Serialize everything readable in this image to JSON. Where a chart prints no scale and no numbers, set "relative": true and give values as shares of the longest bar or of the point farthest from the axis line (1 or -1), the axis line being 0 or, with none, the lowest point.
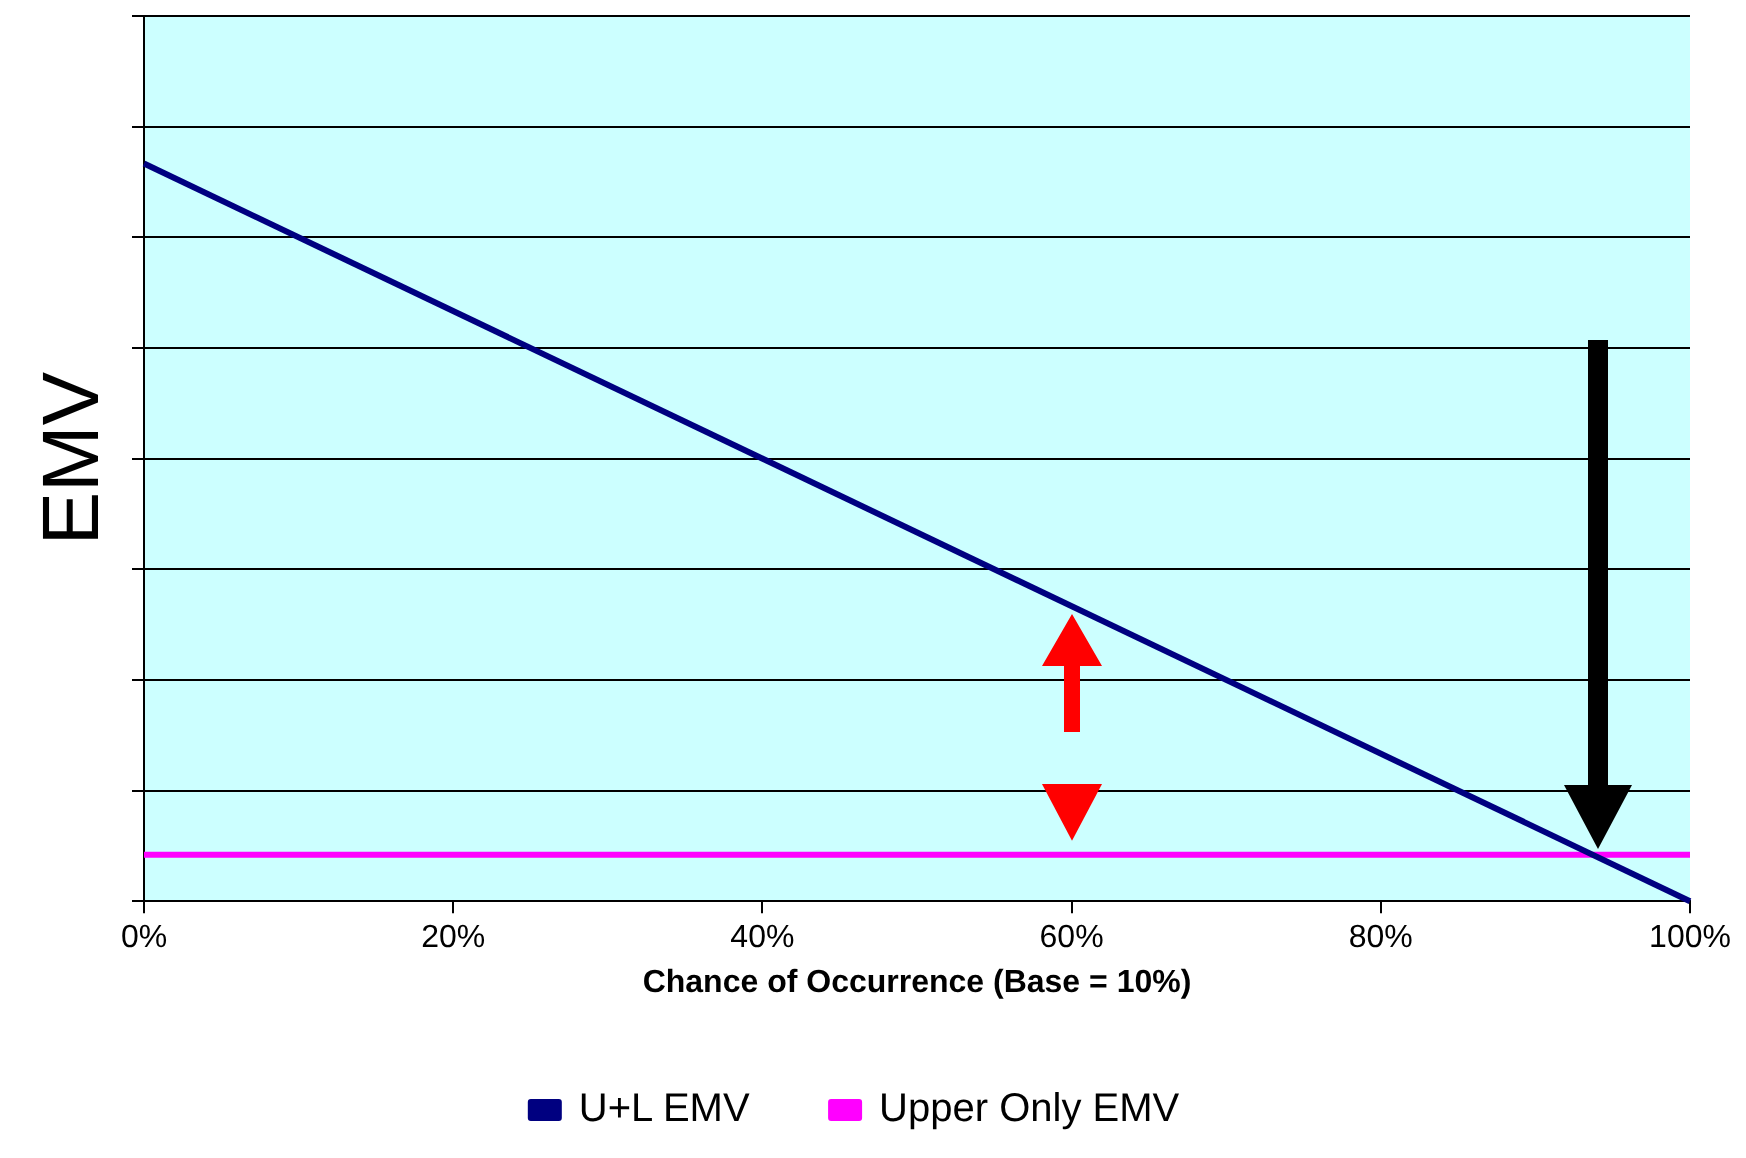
{
  "chart_data": {
    "type": "line",
    "relative": true,
    "xlabel": "Chance of Occurrence (Base = 10%)",
    "ylabel": "EMV",
    "x": [
      0,
      100
    ],
    "xlim": [
      0,
      100
    ],
    "xticks": [
      {
        "value": 0,
        "label": "0%"
      },
      {
        "value": 20,
        "label": "20%"
      },
      {
        "value": 40,
        "label": "40%"
      },
      {
        "value": 60,
        "label": "60%"
      },
      {
        "value": 80,
        "label": "80%"
      },
      {
        "value": 100,
        "label": "100%"
      }
    ],
    "grid": "y",
    "legend": "bottom",
    "marker": "none",
    "line_style": "solid",
    "series": [
      {
        "name": "U+L EMV",
        "color": "#000080",
        "values": [
          1,
          0
        ]
      },
      {
        "name": "Upper Only EMV",
        "color": "#ff00ff",
        "values": [
          0.063,
          0.063
        ]
      }
    ]
  }
}
